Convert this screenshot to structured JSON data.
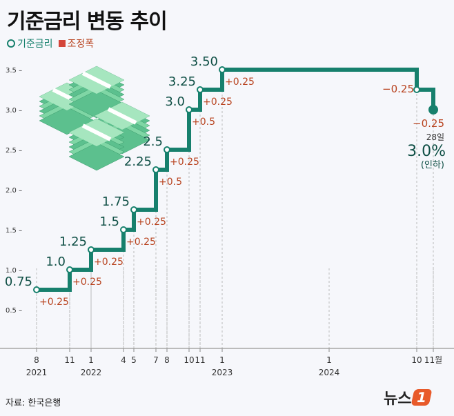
{
  "title": "기준금리 변동 추이",
  "legend": [
    {
      "label": "기준금리",
      "marker": "ring",
      "color": "#17806d"
    },
    {
      "label": "조정폭",
      "marker": "square",
      "color": "#d4453a"
    }
  ],
  "source": "자료: 한국은행",
  "logo": {
    "text": "뉴스",
    "mark": "1"
  },
  "colors": {
    "line": "#17806d",
    "value": "#0f4f45",
    "change": "#b8431f"
  },
  "chart_data": {
    "type": "line",
    "step": true,
    "ylim": [
      0.25,
      3.5
    ],
    "yticks": [
      "3.5",
      "3.0",
      "2.5",
      "2.0",
      "1.5",
      "1.0",
      "0.5"
    ],
    "xticks": [
      {
        "m": "8",
        "y": "2021",
        "d": "2021-08"
      },
      {
        "m": "11",
        "d": "2021-11"
      },
      {
        "m": "1",
        "y": "2022",
        "d": "2022-01"
      },
      {
        "m": "4",
        "d": "2022-04"
      },
      {
        "m": "5",
        "d": "2022-05"
      },
      {
        "m": "7",
        "d": "2022-07"
      },
      {
        "m": "8",
        "d": "2022-08"
      },
      {
        "m": "10",
        "d": "2022-10"
      },
      {
        "m": "11",
        "d": "2022-11"
      },
      {
        "m": "1",
        "y": "2023",
        "d": "2023-01"
      },
      {
        "m": "1",
        "y": "2024",
        "d": "2024-01"
      },
      {
        "m": "10",
        "d": "2024-10"
      },
      {
        "m": "11월",
        "d": "2024-11"
      }
    ],
    "points": [
      {
        "date": "2021-08",
        "value": 0.75,
        "label": "0.75",
        "change": "+0.25"
      },
      {
        "date": "2021-11",
        "value": 1.0,
        "label": "1.0",
        "change": "+0.25"
      },
      {
        "date": "2022-01",
        "value": 1.25,
        "label": "1.25",
        "change": "+0.25"
      },
      {
        "date": "2022-04",
        "value": 1.5,
        "label": "1.5",
        "change": "+0.25"
      },
      {
        "date": "2022-05",
        "value": 1.75,
        "label": "1.75",
        "change": "+0.25"
      },
      {
        "date": "2022-07",
        "value": 2.25,
        "label": "2.25",
        "change": "+0.5"
      },
      {
        "date": "2022-08",
        "value": 2.5,
        "label": "2.5",
        "change": "+0.25"
      },
      {
        "date": "2022-10",
        "value": 3.0,
        "label": "3.0",
        "change": "+0.5"
      },
      {
        "date": "2022-11",
        "value": 3.25,
        "label": "3.25",
        "change": "+0.25"
      },
      {
        "date": "2023-01",
        "value": 3.5,
        "label": "3.50",
        "change": "+0.25"
      },
      {
        "date": "2024-10",
        "value": 3.25,
        "label": "",
        "change": "−0.25"
      },
      {
        "date": "2024-11",
        "value": 3.0,
        "label": "",
        "change": "−0.25"
      }
    ],
    "final": {
      "day": "28일",
      "value": "3.0%",
      "note": "(인하)"
    }
  }
}
